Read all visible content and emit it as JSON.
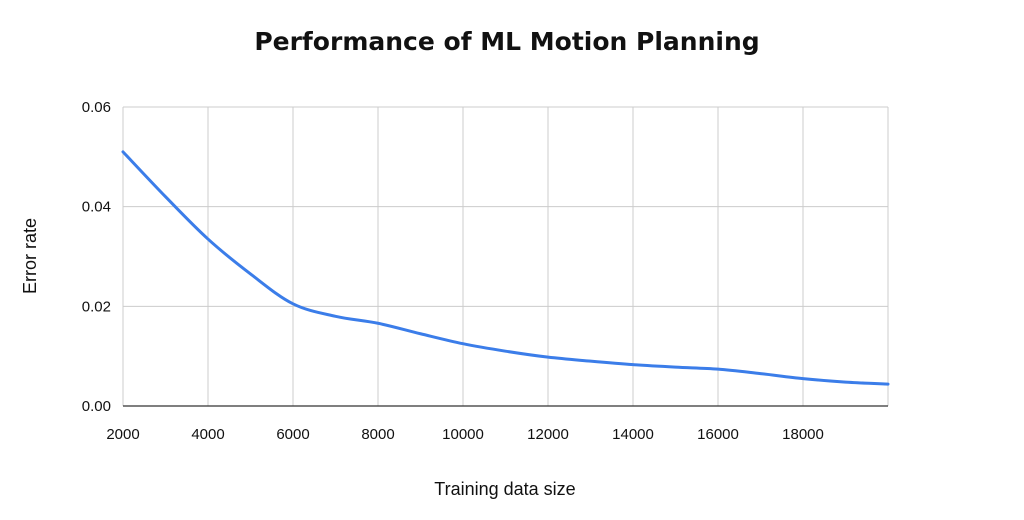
{
  "chart_data": {
    "type": "line",
    "title": "Performance of ML Motion Planning",
    "xlabel": "Training data size",
    "ylabel": "Error rate",
    "xlim": [
      2000,
      20000
    ],
    "ylim": [
      0,
      0.06
    ],
    "x_ticks": [
      2000,
      4000,
      6000,
      8000,
      10000,
      12000,
      14000,
      16000,
      18000
    ],
    "x_tick_labels": [
      "2000",
      "4000",
      "6000",
      "8000",
      "10000",
      "12000",
      "14000",
      "16000",
      "18000"
    ],
    "y_ticks": [
      0,
      0.02,
      0.04,
      0.06
    ],
    "y_tick_labels": [
      "0.00",
      "0.02",
      "0.04",
      "0.06"
    ],
    "grid": true,
    "legend": "none",
    "series": [
      {
        "color": "#3b7de9",
        "x": [
          2000,
          3000,
          4000,
          5000,
          6000,
          7000,
          8000,
          9000,
          10000,
          11000,
          12000,
          13000,
          14000,
          15000,
          16000,
          17000,
          18000,
          19000,
          20000
        ],
        "y": [
          0.051,
          0.042,
          0.0335,
          0.0265,
          0.0205,
          0.018,
          0.0166,
          0.0145,
          0.0125,
          0.011,
          0.0098,
          0.009,
          0.0083,
          0.0078,
          0.0074,
          0.0065,
          0.0055,
          0.0048,
          0.0044
        ]
      }
    ]
  }
}
